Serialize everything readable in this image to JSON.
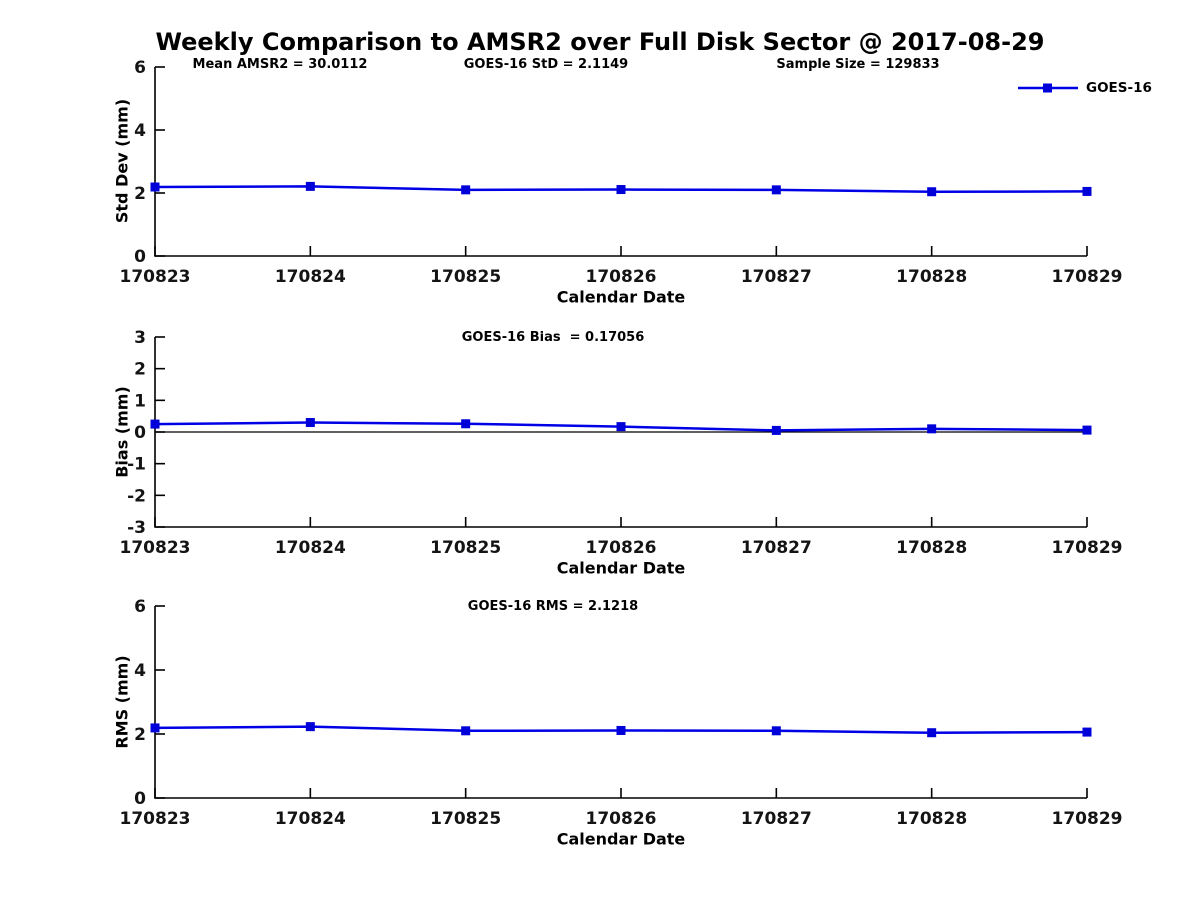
{
  "title": "Weekly Comparison to AMSR2 over Full Disk Sector @ 2017-08-29",
  "legend": {
    "label": "GOES-16"
  },
  "colors": {
    "line": "#0000e6",
    "marker": "#0000d8",
    "axis": "#000000",
    "zero_line": "#000000",
    "text": "#000000"
  },
  "chart_data": [
    {
      "type": "line",
      "name": "std-dev-plot",
      "annotations": [
        "Mean AMSR2 = 30.0112",
        "GOES-16 StD = 2.1149",
        "Sample Size = 129833"
      ],
      "ylabel": "Std Dev (mm)",
      "xlabel": "Calendar Date",
      "categories": [
        "170823",
        "170824",
        "170825",
        "170826",
        "170827",
        "170828",
        "170829"
      ],
      "series": [
        {
          "name": "GOES-16",
          "values": [
            2.19,
            2.21,
            2.1,
            2.11,
            2.1,
            2.04,
            2.05
          ]
        }
      ],
      "ylim": [
        0,
        6
      ],
      "yticks": [
        0,
        2,
        4,
        6
      ],
      "zero_line": false,
      "grid": false,
      "legend_position": "top-right"
    },
    {
      "type": "line",
      "name": "bias-plot",
      "title": "GOES-16 Bias  = 0.17056",
      "ylabel": "Bias (mm)",
      "xlabel": "Calendar Date",
      "categories": [
        "170823",
        "170824",
        "170825",
        "170826",
        "170827",
        "170828",
        "170829"
      ],
      "series": [
        {
          "name": "GOES-16",
          "values": [
            0.25,
            0.3,
            0.26,
            0.17,
            0.05,
            0.1,
            0.06
          ]
        }
      ],
      "ylim": [
        -3,
        3
      ],
      "yticks": [
        -3,
        -2,
        -1,
        0,
        1,
        2,
        3
      ],
      "zero_line": true,
      "grid": false
    },
    {
      "type": "line",
      "name": "rms-plot",
      "title": "GOES-16 RMS = 2.1218",
      "ylabel": "RMS (mm)",
      "xlabel": "Calendar Date",
      "categories": [
        "170823",
        "170824",
        "170825",
        "170826",
        "170827",
        "170828",
        "170829"
      ],
      "series": [
        {
          "name": "GOES-16",
          "values": [
            2.19,
            2.23,
            2.1,
            2.11,
            2.1,
            2.04,
            2.06
          ]
        }
      ],
      "ylim": [
        0,
        6
      ],
      "yticks": [
        0,
        2,
        4,
        6
      ],
      "zero_line": false,
      "grid": false
    }
  ]
}
